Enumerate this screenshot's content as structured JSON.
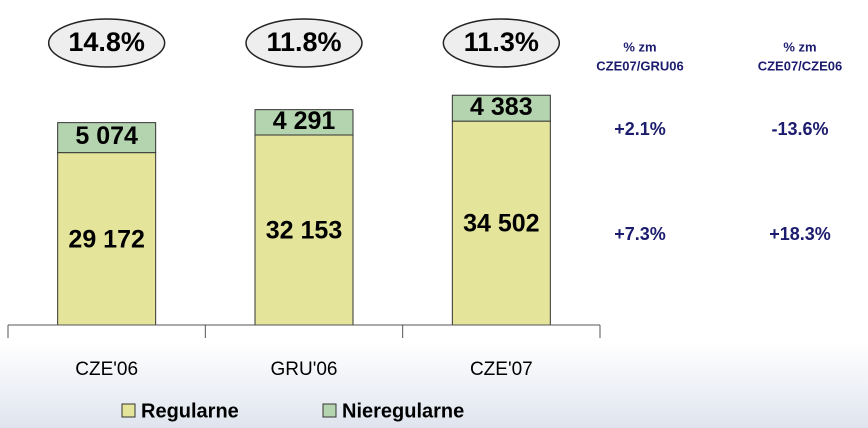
{
  "chart_data": {
    "type": "stacked_bar",
    "categories": [
      "CZE'06",
      "GRU'06",
      "CZE'07"
    ],
    "series": [
      {
        "name": "Regularne",
        "color": "#e4e49a",
        "values": [
          29172,
          32153,
          34502
        ],
        "value_labels": [
          "29 172",
          "32 153",
          "34 502"
        ]
      },
      {
        "name": "Nieregularne",
        "color": "#b4d4b0",
        "values": [
          5074,
          4291,
          4383
        ],
        "value_labels": [
          "5 074",
          "4 291",
          "4 383"
        ]
      }
    ],
    "ylim": [
      0,
      55000
    ],
    "annotations": [
      "14.8%",
      "11.8%",
      "11.3%"
    ],
    "change_table": {
      "headers": [
        [
          "% zm",
          "CZE07/GRU06"
        ],
        [
          "% zm",
          "CZE07/CZE06"
        ]
      ],
      "rows": [
        [
          "+2.1%",
          "-13.6%"
        ],
        [
          "+7.3%",
          "+18.3%"
        ]
      ]
    },
    "legend": "bottom"
  }
}
